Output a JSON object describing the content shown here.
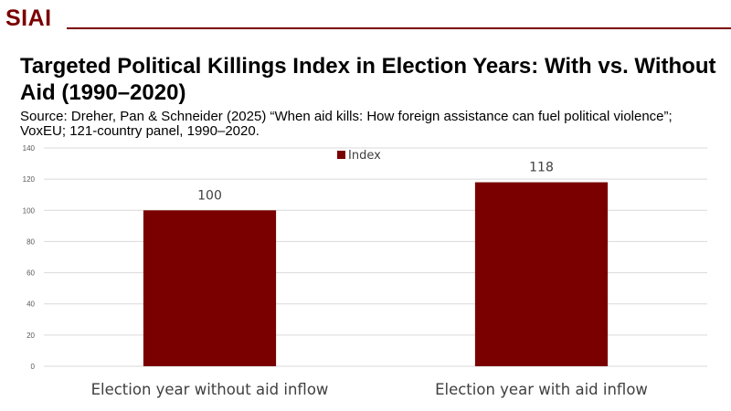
{
  "brand": {
    "logo_text": "SIAI"
  },
  "header": {
    "title": "Targeted Political Killings Index in Election Years: With vs. Without Aid (1990–2020)",
    "source": "Source: Dreher, Pan & Schneider (2025) “When aid kills: How foreign assistance can fuel political violence”; VoxEU; 121-country panel, 1990–2020."
  },
  "colors": {
    "brand": "#7a0000",
    "bar": "#7a0000",
    "grid": "#d9d9d9"
  },
  "chart_data": {
    "type": "bar",
    "categories": [
      "Election year without aid inflow",
      "Election year with aid inflow"
    ],
    "series": [
      {
        "name": "Index",
        "values": [
          100,
          118
        ]
      }
    ],
    "ylim": [
      0,
      140
    ],
    "yticks": [
      0,
      20,
      40,
      60,
      80,
      100,
      120,
      140
    ],
    "grid": true,
    "legend": "top-center",
    "data_labels": true
  }
}
